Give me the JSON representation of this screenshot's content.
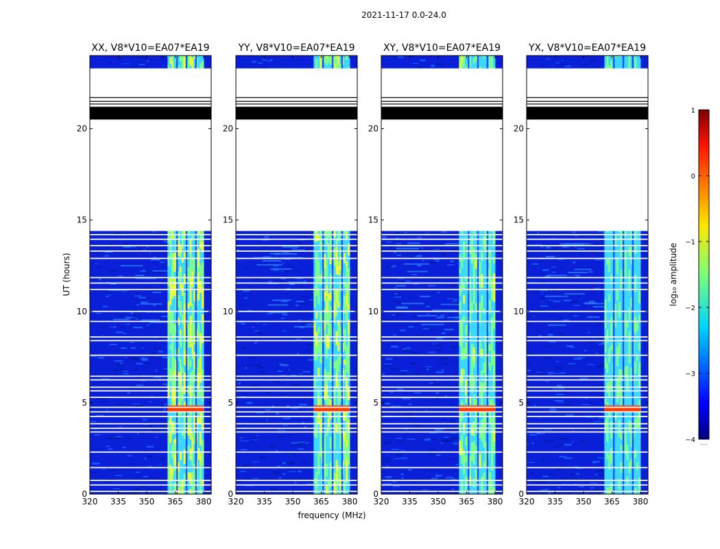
{
  "chart_data": {
    "type": "heatmap",
    "suptitle": "2021-11-17 0.0-24.0",
    "xlabel": "frequency (MHz)",
    "ylabel": "UT (hours)",
    "xlim": [
      320,
      384
    ],
    "ylim": [
      0,
      24
    ],
    "xticks": [
      320,
      335,
      350,
      365,
      380
    ],
    "yticks": [
      0,
      5,
      10,
      15,
      20
    ],
    "subplots": [
      {
        "title": "XX, V8*V10=EA07*EA19",
        "stripe_strength": 1.0
      },
      {
        "title": "YY, V8*V10=EA07*EA19",
        "stripe_strength": 0.85
      },
      {
        "title": "XY, V8*V10=EA07*EA19",
        "stripe_strength": 0.75
      },
      {
        "title": "YX, V8*V10=EA07*EA19",
        "stripe_strength": 0.55
      }
    ],
    "colorbar": {
      "label": "log₁₀ amplitude",
      "range": [
        -4,
        1
      ],
      "ticks": [
        1,
        0,
        -1,
        -2,
        -3,
        -4
      ],
      "colormap": "jet",
      "extra_label": "....."
    },
    "bright_band_MHz": [
      361,
      380
    ],
    "channel_separators_MHz": [
      366,
      371,
      376
    ],
    "flagged_white_UT": [
      [
        14.4,
        23.3
      ]
    ],
    "flagged_black_UT": [
      [
        20.5,
        21.2
      ]
    ],
    "black_lines_UT": [
      21.35,
      21.5,
      21.7
    ],
    "white_lines_UT": [
      0.15,
      0.5,
      0.75,
      1.45,
      2.3,
      3.4,
      3.6,
      3.85,
      4.25,
      4.5,
      4.75,
      5.3,
      5.65,
      5.85,
      6.25,
      6.45,
      7.6,
      8.4,
      8.6,
      9.45,
      10.0,
      11.2,
      11.55,
      11.85,
      12.9,
      13.3,
      13.6,
      13.95,
      14.2
    ],
    "hot_band_UT": [
      4.5,
      4.85
    ],
    "colors": {
      "background": "#0a1fd8",
      "noise_low": "#001aa8",
      "noise_high": "#1e64ff",
      "band_cyan": "#3cd8ff",
      "band_green": "#7cff8c",
      "band_yellow": "#e6ff3a",
      "hot_red": "#ff3a00"
    }
  }
}
